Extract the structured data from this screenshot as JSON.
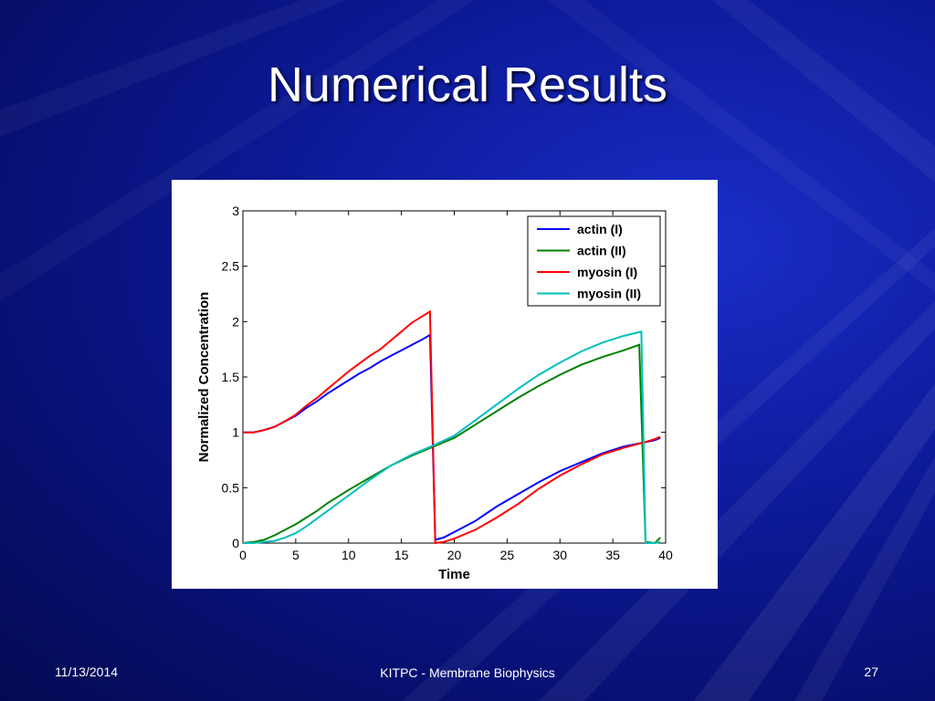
{
  "slide": {
    "title": "Numerical Results",
    "footer_date": "11/13/2014",
    "footer_center": "KITPC - Membrane Biophysics",
    "page_number": "27"
  },
  "chart_data": {
    "type": "line",
    "title": "",
    "xlabel": "Time",
    "ylabel": "Normalized Concentration",
    "xlim": [
      0,
      40
    ],
    "ylim": [
      0,
      3
    ],
    "xticks": [
      0,
      5,
      10,
      15,
      20,
      25,
      30,
      35,
      40
    ],
    "yticks": [
      0,
      0.5,
      1,
      1.5,
      2,
      2.5,
      3
    ],
    "ytick_labels": [
      "0",
      "0.5",
      "1",
      "1.5",
      "2",
      "2.5",
      "3"
    ],
    "grid": false,
    "legend_position": "top-right",
    "series": [
      {
        "name": "actin (I)",
        "color": "#0000ff",
        "points": [
          [
            0,
            1.0
          ],
          [
            1,
            1.0
          ],
          [
            2,
            1.02
          ],
          [
            3,
            1.05
          ],
          [
            4,
            1.1
          ],
          [
            5,
            1.15
          ],
          [
            6,
            1.22
          ],
          [
            7,
            1.28
          ],
          [
            8,
            1.35
          ],
          [
            9,
            1.41
          ],
          [
            10,
            1.47
          ],
          [
            11,
            1.53
          ],
          [
            12,
            1.58
          ],
          [
            13,
            1.64
          ],
          [
            14,
            1.69
          ],
          [
            15,
            1.74
          ],
          [
            16,
            1.79
          ],
          [
            17,
            1.84
          ],
          [
            17.7,
            1.88
          ],
          [
            18.2,
            0.03
          ],
          [
            19,
            0.05
          ],
          [
            20,
            0.1
          ],
          [
            22,
            0.2
          ],
          [
            24,
            0.33
          ],
          [
            26,
            0.44
          ],
          [
            28,
            0.55
          ],
          [
            30,
            0.65
          ],
          [
            32,
            0.73
          ],
          [
            34,
            0.81
          ],
          [
            36,
            0.87
          ],
          [
            38,
            0.91
          ],
          [
            39,
            0.93
          ],
          [
            39.5,
            0.95
          ]
        ]
      },
      {
        "name": "actin (II)",
        "color": "#008000",
        "points": [
          [
            0,
            0.0
          ],
          [
            1,
            0.01
          ],
          [
            2,
            0.03
          ],
          [
            3,
            0.07
          ],
          [
            4,
            0.12
          ],
          [
            5,
            0.17
          ],
          [
            6,
            0.23
          ],
          [
            7,
            0.29
          ],
          [
            8,
            0.36
          ],
          [
            10,
            0.48
          ],
          [
            12,
            0.59
          ],
          [
            14,
            0.7
          ],
          [
            16,
            0.79
          ],
          [
            18,
            0.87
          ],
          [
            20,
            0.95
          ],
          [
            22,
            1.07
          ],
          [
            24,
            1.19
          ],
          [
            26,
            1.31
          ],
          [
            28,
            1.42
          ],
          [
            30,
            1.52
          ],
          [
            32,
            1.61
          ],
          [
            34,
            1.68
          ],
          [
            36,
            1.74
          ],
          [
            37.5,
            1.79
          ],
          [
            38.1,
            0.01
          ],
          [
            39,
            0.0
          ],
          [
            39.5,
            0.05
          ]
        ]
      },
      {
        "name": "myosin (I)",
        "color": "#ff0000",
        "points": [
          [
            0,
            1.0
          ],
          [
            1,
            1.0
          ],
          [
            2,
            1.02
          ],
          [
            3,
            1.05
          ],
          [
            4,
            1.1
          ],
          [
            5,
            1.16
          ],
          [
            6,
            1.24
          ],
          [
            7,
            1.31
          ],
          [
            8,
            1.39
          ],
          [
            9,
            1.47
          ],
          [
            10,
            1.55
          ],
          [
            11,
            1.62
          ],
          [
            12,
            1.69
          ],
          [
            13,
            1.75
          ],
          [
            14,
            1.83
          ],
          [
            15,
            1.91
          ],
          [
            16,
            1.99
          ],
          [
            17,
            2.05
          ],
          [
            17.7,
            2.09
          ],
          [
            18.2,
            0.0
          ],
          [
            19,
            0.01
          ],
          [
            20,
            0.04
          ],
          [
            22,
            0.12
          ],
          [
            24,
            0.23
          ],
          [
            26,
            0.35
          ],
          [
            28,
            0.49
          ],
          [
            30,
            0.61
          ],
          [
            32,
            0.71
          ],
          [
            34,
            0.8
          ],
          [
            36,
            0.86
          ],
          [
            38,
            0.91
          ],
          [
            39,
            0.94
          ],
          [
            39.5,
            0.96
          ]
        ]
      },
      {
        "name": "myosin (II)",
        "color": "#00bfbf",
        "points": [
          [
            0,
            0.0
          ],
          [
            1,
            0.0
          ],
          [
            2,
            0.01
          ],
          [
            3,
            0.02
          ],
          [
            4,
            0.05
          ],
          [
            5,
            0.09
          ],
          [
            6,
            0.15
          ],
          [
            7,
            0.22
          ],
          [
            8,
            0.29
          ],
          [
            10,
            0.43
          ],
          [
            12,
            0.57
          ],
          [
            14,
            0.7
          ],
          [
            16,
            0.8
          ],
          [
            18,
            0.88
          ],
          [
            20,
            0.97
          ],
          [
            22,
            1.11
          ],
          [
            24,
            1.25
          ],
          [
            26,
            1.39
          ],
          [
            28,
            1.52
          ],
          [
            30,
            1.63
          ],
          [
            32,
            1.73
          ],
          [
            34,
            1.81
          ],
          [
            36,
            1.87
          ],
          [
            37.7,
            1.91
          ],
          [
            38.1,
            0.0
          ],
          [
            39,
            0.0
          ],
          [
            39.5,
            0.01
          ]
        ]
      }
    ]
  }
}
